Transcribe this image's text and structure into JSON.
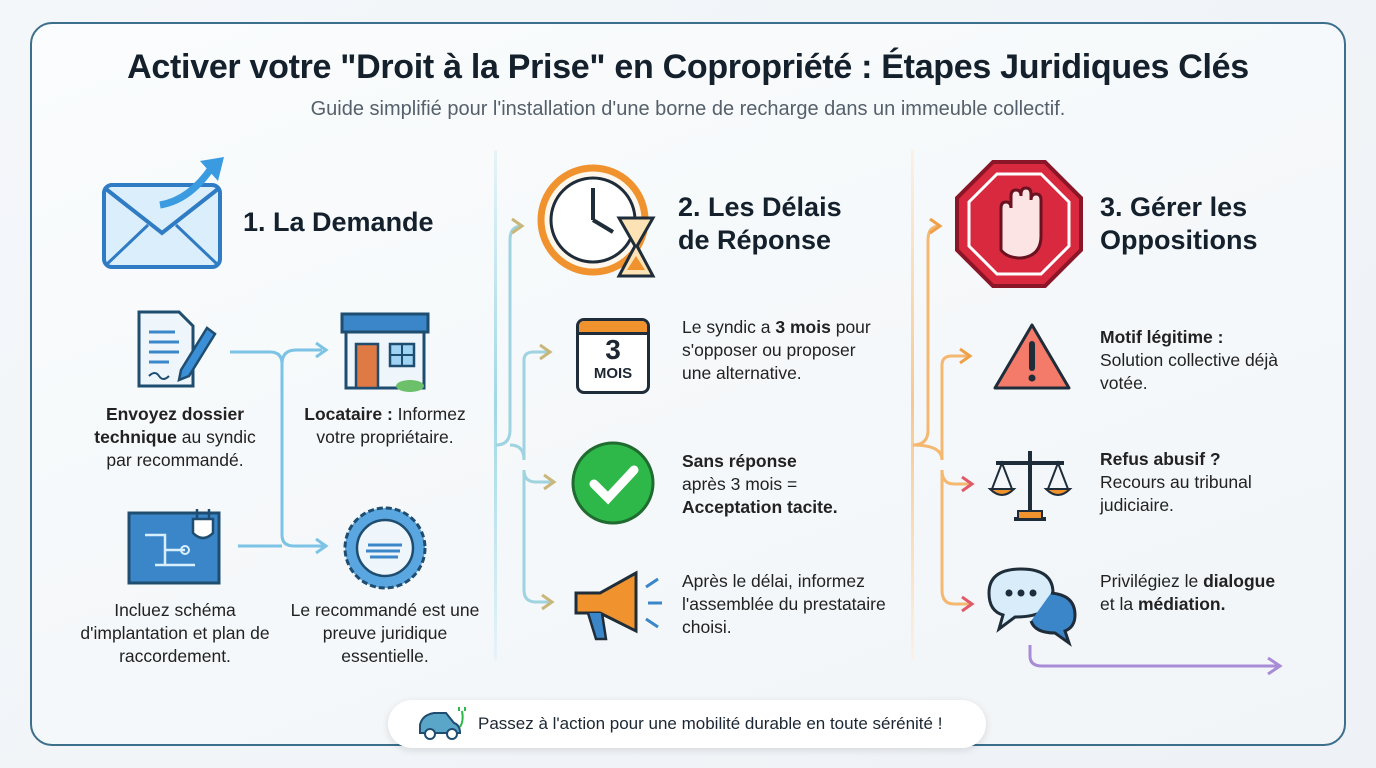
{
  "title": "Activer votre \"Droit à la Prise\" en Copropriété : Étapes Juridiques Clés",
  "subtitle": "Guide simplifié pour l'installation d'une borne de recharge dans un immeuble collectif.",
  "sections": [
    {
      "title_l1": "1. La Demande",
      "icon": "envelope-arrow-icon",
      "items": [
        {
          "icon": "document-pen-icon",
          "bold": "Envoyez dossier technique",
          "text": " au syndic par recommandé."
        },
        {
          "icon": "house-icon",
          "bold": "Locataire :",
          "text": " Informez votre propriétaire."
        },
        {
          "icon": "blueprint-plug-icon",
          "bold": "",
          "text": "Incluez schéma d'implantation et plan de raccordement."
        },
        {
          "icon": "seal-icon",
          "bold": "",
          "text": "Le recommandé est une preuve juridique essentielle."
        }
      ]
    },
    {
      "title_l1": "2. Les Délais",
      "title_l2": "de Réponse",
      "icon": "clock-hourglass-icon",
      "calendar_number": "3",
      "calendar_label": "MOIS",
      "items": [
        {
          "icon": "calendar-icon",
          "pre": "Le syndic a ",
          "bold": "3 mois",
          "text": " pour s'opposer ou proposer une alternative."
        },
        {
          "icon": "check-circle-icon",
          "bold": "Sans réponse",
          "text": " après 3 mois = ",
          "bold2": "Acceptation tacite."
        },
        {
          "icon": "megaphone-icon",
          "text": "Après le délai, informez l'assemblée du prestataire choisi."
        }
      ]
    },
    {
      "title_l1": "3. Gérer les",
      "title_l2": "Oppositions",
      "icon": "stop-hand-icon",
      "items": [
        {
          "icon": "warning-icon",
          "bold": "Motif légitime :",
          "text": " Solution collective déjà votée."
        },
        {
          "icon": "scales-icon",
          "bold": "Refus abusif ?",
          "text": " Recours au tribunal judiciaire."
        },
        {
          "icon": "chat-bubbles-icon",
          "pre": "Privilégiez le ",
          "bold": "dialogue",
          "text": " et la ",
          "bold2": "médiation."
        }
      ]
    }
  ],
  "footer": {
    "icon": "electric-car-icon",
    "text": "Passez à l'action pour une mobilité durable en toute sérénité !"
  },
  "colors": {
    "border": "#3b6f8c",
    "blue": "#3a8fd6",
    "orange": "#f0922e",
    "red": "#d8293f",
    "green": "#2fb84a"
  }
}
